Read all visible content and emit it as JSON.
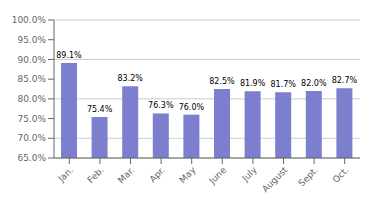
{
  "chart_data": {
    "type": "bar",
    "categories": [
      "Jan.",
      "Feb.",
      "Mar.",
      "Apr.",
      "May",
      "June",
      "July",
      "August",
      "Sept.",
      "Oct."
    ],
    "values": [
      89.1,
      75.4,
      83.2,
      76.3,
      76.0,
      82.5,
      81.9,
      81.7,
      82.0,
      82.7
    ],
    "value_labels": [
      "89.1%",
      "75.4%",
      "83.2%",
      "76.3%",
      "76.0%",
      "82.5%",
      "81.9%",
      "81.7%",
      "82.0%",
      "82.7%"
    ],
    "data_labels": true,
    "color": "#7b7fcd",
    "ylim": [
      65.0,
      100.0
    ],
    "yticks": [
      {
        "value": 65.0,
        "label": "65.0%"
      },
      {
        "value": 70.0,
        "label": "70.0%"
      },
      {
        "value": 75.0,
        "label": "75.0%"
      },
      {
        "value": 80.0,
        "label": "80.0%"
      },
      {
        "value": 85.0,
        "label": "85.0%"
      },
      {
        "value": 90.0,
        "label": "90.0%"
      },
      {
        "value": 95.0,
        "label": "95.0%"
      },
      {
        "value": 100.0,
        "label": "100.0%"
      }
    ],
    "grid": true
  }
}
